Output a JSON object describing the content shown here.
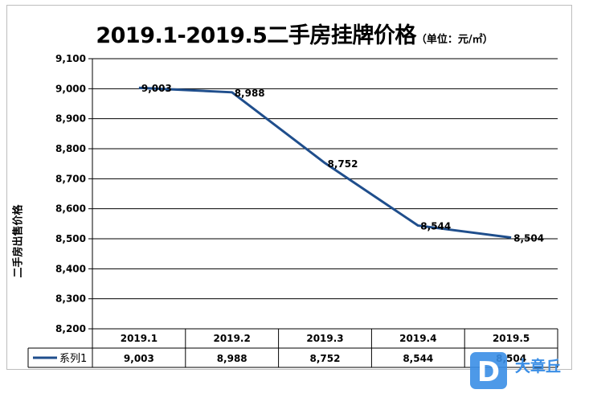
{
  "chart_data": {
    "type": "line",
    "title": "2019.1-2019.5二手房挂牌价格",
    "title_unit": "（单位：元/㎡）",
    "ylabel": "二手房出售价格",
    "xlabel": "",
    "categories": [
      "2019.1",
      "2019.2",
      "2019.3",
      "2019.4",
      "2019.5"
    ],
    "series": [
      {
        "name": "系列1",
        "values": [
          9003,
          8988,
          8752,
          8544,
          8504
        ],
        "color": "#1f4e8c"
      }
    ],
    "ylim": [
      8200,
      9100
    ],
    "ytick_step": 100,
    "ytick_labels": [
      "9,100",
      "9,000",
      "8,900",
      "8,800",
      "8,700",
      "8,600",
      "8,500",
      "8,400",
      "8,300",
      "8,200"
    ],
    "data_labels": [
      "9,003",
      "8,988",
      "8,752",
      "8,544",
      "8,504"
    ],
    "grid": true,
    "legend": "data-table"
  },
  "watermark": {
    "text": "大章丘",
    "glyph": "D"
  }
}
